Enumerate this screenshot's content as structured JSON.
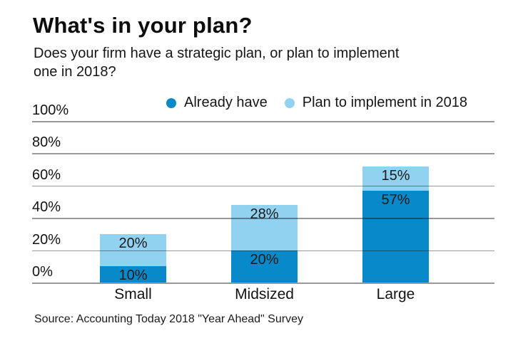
{
  "title": "What's in your plan?",
  "subtitle": {
    "line1": "Does your firm have a strategic plan, or plan to implement",
    "line2": "one in 2018?"
  },
  "legend": [
    {
      "label": "Already have",
      "color": "#0889c9"
    },
    {
      "label": "Plan to implement in 2018",
      "color": "#91d2f0"
    }
  ],
  "source": "Source: Accounting Today 2018 \"Year Ahead\" Survey",
  "chart_data": {
    "type": "bar",
    "subtype": "stacked-vertical",
    "title": "What's in your plan?",
    "subtitle": "Does your firm have a strategic plan, or plan to implement one in 2018?",
    "categories": [
      "Small",
      "Midsized",
      "Large"
    ],
    "series": [
      {
        "name": "Already have",
        "color": "#0889c9",
        "values": [
          10,
          20,
          57
        ]
      },
      {
        "name": "Plan to implement in 2018",
        "color": "#91d2f0",
        "values": [
          20,
          28,
          15
        ]
      }
    ],
    "totals": [
      30,
      48,
      72
    ],
    "value_label_format": "{value}%",
    "xlabel": "",
    "ylabel": "",
    "ylim": [
      0,
      100
    ],
    "y_ticks": [
      100,
      80,
      60,
      40,
      20,
      0
    ],
    "y_tick_labels": [
      "100%",
      "80%",
      "60%",
      "40%",
      "20%",
      "0%"
    ],
    "grid": true,
    "gridline_color": "#97999b",
    "legend_position": "top",
    "text_color": "#1b1b1b",
    "background_color": "#ffffff",
    "source": "Source: Accounting Today 2018 \"Year Ahead\" Survey"
  }
}
